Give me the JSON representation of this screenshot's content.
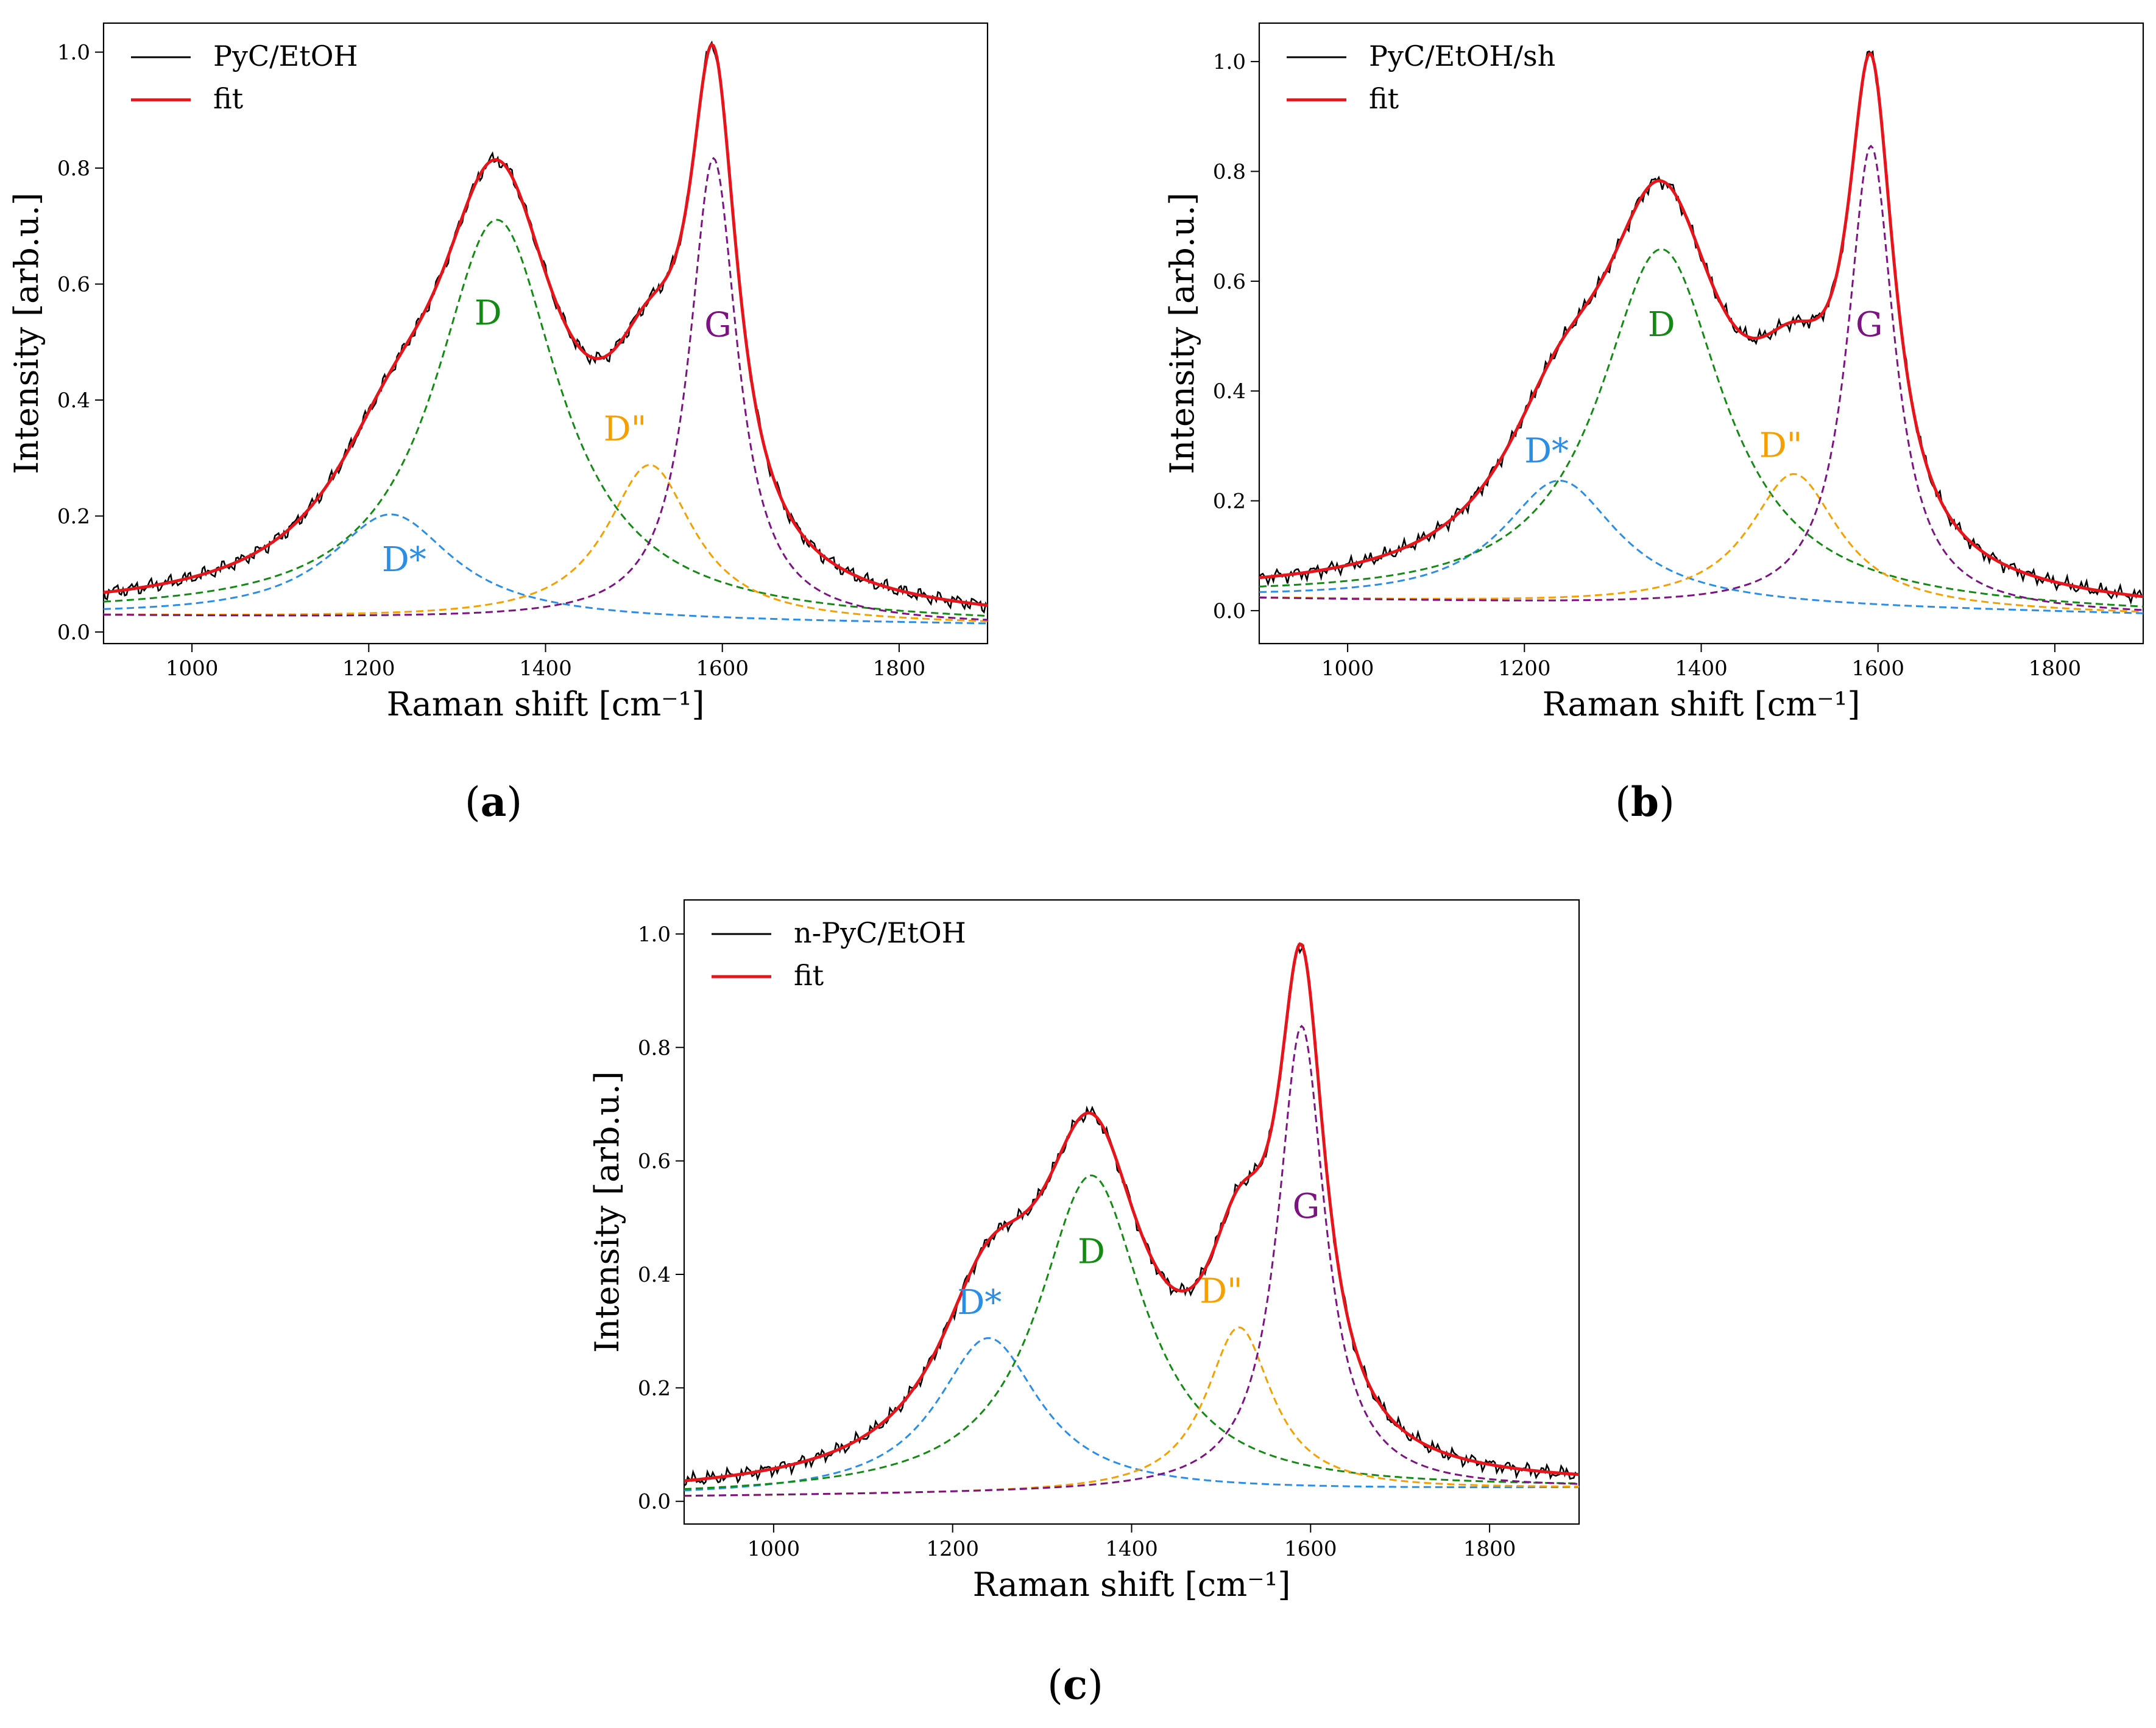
{
  "figure_caption": "Raman spectra with peak fits",
  "colors": {
    "measured": "#000000",
    "fit": "#e8141b",
    "D": "#138a13",
    "D_star": "#2a8ee6",
    "D_double_prime": "#f5a000",
    "G": "#7d1283"
  },
  "chart_data": [
    {
      "type": "line",
      "panel_label": "(a)",
      "panel_letter": "a",
      "legend": [
        "PyC/EtOH",
        "fit"
      ],
      "legend_position": "top-left",
      "xlabel": "Raman shift [cm⁻¹]",
      "ylabel": "Intensity [arb.u.]",
      "xlim": [
        900,
        1900
      ],
      "ylim": [
        -0.02,
        1.05
      ],
      "xticks": [
        1000,
        1200,
        1400,
        1600,
        1800
      ],
      "yticks": [
        0.0,
        0.2,
        0.4,
        0.6,
        0.8,
        1.0
      ],
      "baseline": {
        "start": 0.028,
        "end": 0.012
      },
      "components": [
        {
          "name": "D*",
          "center": 1225,
          "amplitude": 0.18,
          "hwhm": 85,
          "color_key": "D_star"
        },
        {
          "name": "D",
          "center": 1345,
          "amplitude": 0.69,
          "hwhm": 85,
          "color_key": "D"
        },
        {
          "name": "D\"",
          "center": 1518,
          "amplitude": 0.27,
          "hwhm": 60,
          "color_key": "D_double_prime"
        },
        {
          "name": "G",
          "center": 1590,
          "amplitude": 0.8,
          "hwhm": 33,
          "color_key": "G"
        }
      ],
      "peak_labels": [
        {
          "text": "D*",
          "x": 1240,
          "y": 0.105,
          "color_key": "D_star"
        },
        {
          "text": "D",
          "x": 1335,
          "y": 0.53,
          "color_key": "D"
        },
        {
          "text": "D\"",
          "x": 1490,
          "y": 0.33,
          "color_key": "D_double_prime"
        },
        {
          "text": "G",
          "x": 1595,
          "y": 0.51,
          "color_key": "G"
        }
      ]
    },
    {
      "type": "line",
      "panel_label": "(b)",
      "panel_letter": "b",
      "legend": [
        "PyC/EtOH/sh",
        "fit"
      ],
      "legend_position": "top-left",
      "xlabel": "Raman shift [cm⁻¹]",
      "ylabel": "Intensity [arb.u.]",
      "xlim": [
        900,
        1900
      ],
      "ylim": [
        -0.06,
        1.07
      ],
      "xticks": [
        1000,
        1200,
        1400,
        1600,
        1800
      ],
      "yticks": [
        0.0,
        0.2,
        0.4,
        0.6,
        0.8,
        1.0
      ],
      "baseline": {
        "start": 0.022,
        "end": -0.008
      },
      "components": [
        {
          "name": "D*",
          "center": 1240,
          "amplitude": 0.225,
          "hwhm": 80,
          "color_key": "D_star"
        },
        {
          "name": "D",
          "center": 1355,
          "amplitude": 0.65,
          "hwhm": 85,
          "color_key": "D"
        },
        {
          "name": "D\"",
          "center": 1505,
          "amplitude": 0.245,
          "hwhm": 62,
          "color_key": "D_double_prime"
        },
        {
          "name": "G",
          "center": 1592,
          "amplitude": 0.845,
          "hwhm": 32,
          "color_key": "G"
        }
      ],
      "peak_labels": [
        {
          "text": "D*",
          "x": 1225,
          "y": 0.27,
          "color_key": "D_star"
        },
        {
          "text": "D",
          "x": 1355,
          "y": 0.5,
          "color_key": "D"
        },
        {
          "text": "D\"",
          "x": 1490,
          "y": 0.28,
          "color_key": "D_double_prime"
        },
        {
          "text": "G",
          "x": 1590,
          "y": 0.5,
          "color_key": "G"
        }
      ]
    },
    {
      "type": "line",
      "panel_label": "(c)",
      "panel_letter": "c",
      "legend": [
        "n-PyC/EtOH",
        "fit"
      ],
      "legend_position": "top-left",
      "xlabel": "Raman shift [cm⁻¹]",
      "ylabel": "Intensity [arb.u.]",
      "xlim": [
        900,
        1900
      ],
      "ylim": [
        -0.04,
        1.06
      ],
      "xticks": [
        1000,
        1200,
        1400,
        1600,
        1800
      ],
      "yticks": [
        0.0,
        0.2,
        0.4,
        0.6,
        0.8,
        1.0
      ],
      "baseline": {
        "start": 0.008,
        "end": 0.022
      },
      "components": [
        {
          "name": "D*",
          "center": 1240,
          "amplitude": 0.275,
          "hwhm": 70,
          "color_key": "D_star"
        },
        {
          "name": "D",
          "center": 1355,
          "amplitude": 0.56,
          "hwhm": 72,
          "color_key": "D"
        },
        {
          "name": "D\"",
          "center": 1520,
          "amplitude": 0.29,
          "hwhm": 45,
          "color_key": "D_double_prime"
        },
        {
          "name": "G",
          "center": 1590,
          "amplitude": 0.82,
          "hwhm": 32,
          "color_key": "G"
        }
      ],
      "peak_labels": [
        {
          "text": "D*",
          "x": 1230,
          "y": 0.33,
          "color_key": "D_star"
        },
        {
          "text": "D",
          "x": 1355,
          "y": 0.42,
          "color_key": "D"
        },
        {
          "text": "D\"",
          "x": 1500,
          "y": 0.35,
          "color_key": "D_double_prime"
        },
        {
          "text": "G",
          "x": 1595,
          "y": 0.5,
          "color_key": "G"
        }
      ]
    }
  ]
}
